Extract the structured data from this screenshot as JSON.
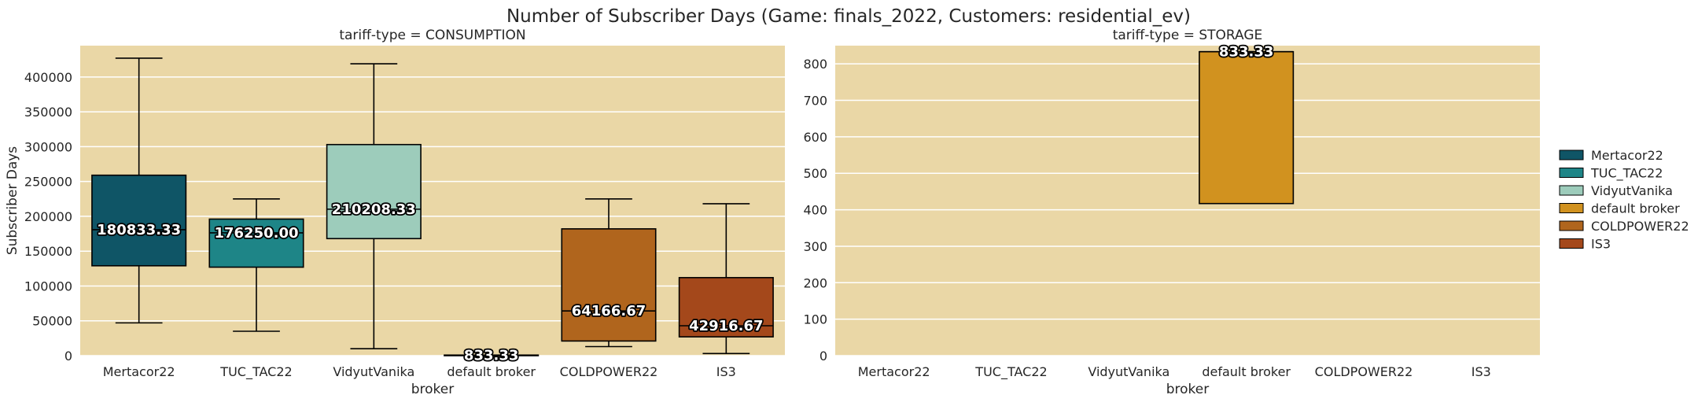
{
  "suptitle": "Number of Subscriber Days (Game: finals_2022, Customers: residential_ev)",
  "colors": {
    "panel_bg": "#EAD7A6",
    "Mertacor22": "#0F5566",
    "TUC_TAC22": "#1E8587",
    "VidyutVanika": "#9DCCBB",
    "default broker": "#D1921F",
    "COLDPOWER22": "#B0651D",
    "IS3": "#A4481B"
  },
  "legend": [
    "Mertacor22",
    "TUC_TAC22",
    "VidyutVanika",
    "default broker",
    "COLDPOWER22",
    "IS3"
  ],
  "chart_data": [
    {
      "type": "box",
      "title": "tariff-type = CONSUMPTION",
      "xlabel": "broker",
      "ylabel": "Subscriber Days",
      "ylim": [
        0,
        445000
      ],
      "yticks": [
        0,
        50000,
        100000,
        150000,
        200000,
        250000,
        300000,
        350000,
        400000
      ],
      "grid": true,
      "categories": [
        "Mertacor22",
        "TUC_TAC22",
        "VidyutVanika",
        "default broker",
        "COLDPOWER22",
        "IS3"
      ],
      "boxes": [
        {
          "broker": "Mertacor22",
          "whislo": 47000,
          "q1": 129000,
          "med": 180833.33,
          "q3": 259000,
          "whishi": 427000,
          "label": "180833.33"
        },
        {
          "broker": "TUC_TAC22",
          "whislo": 35000,
          "q1": 127000,
          "med": 176250.0,
          "q3": 196000,
          "whishi": 225000,
          "label": "176250.00"
        },
        {
          "broker": "VidyutVanika",
          "whislo": 10000,
          "q1": 168000,
          "med": 210208.33,
          "q3": 303000,
          "whishi": 419000,
          "label": "210208.33"
        },
        {
          "broker": "default broker",
          "whislo": 833.33,
          "q1": 833.33,
          "med": 833.33,
          "q3": 833.33,
          "whishi": 833.33,
          "label": "833.33"
        },
        {
          "broker": "COLDPOWER22",
          "whislo": 13000,
          "q1": 21000,
          "med": 64166.67,
          "q3": 182000,
          "whishi": 225000,
          "label": "64166.67"
        },
        {
          "broker": "IS3",
          "whislo": 3000,
          "q1": 27000,
          "med": 42916.67,
          "q3": 112000,
          "whishi": 218000,
          "label": "42916.67"
        }
      ]
    },
    {
      "type": "box",
      "title": "tariff-type = STORAGE",
      "xlabel": "broker",
      "ylabel": "",
      "ylim": [
        0,
        850
      ],
      "yticks": [
        0,
        100,
        200,
        300,
        400,
        500,
        600,
        700,
        800
      ],
      "grid": true,
      "categories": [
        "Mertacor22",
        "TUC_TAC22",
        "VidyutVanika",
        "default broker",
        "COLDPOWER22",
        "IS3"
      ],
      "boxes": [
        {
          "broker": "default broker",
          "whislo": 417,
          "q1": 417,
          "med": 833.33,
          "q3": 833.33,
          "whishi": 833.33,
          "label": "833.33"
        }
      ]
    }
  ]
}
